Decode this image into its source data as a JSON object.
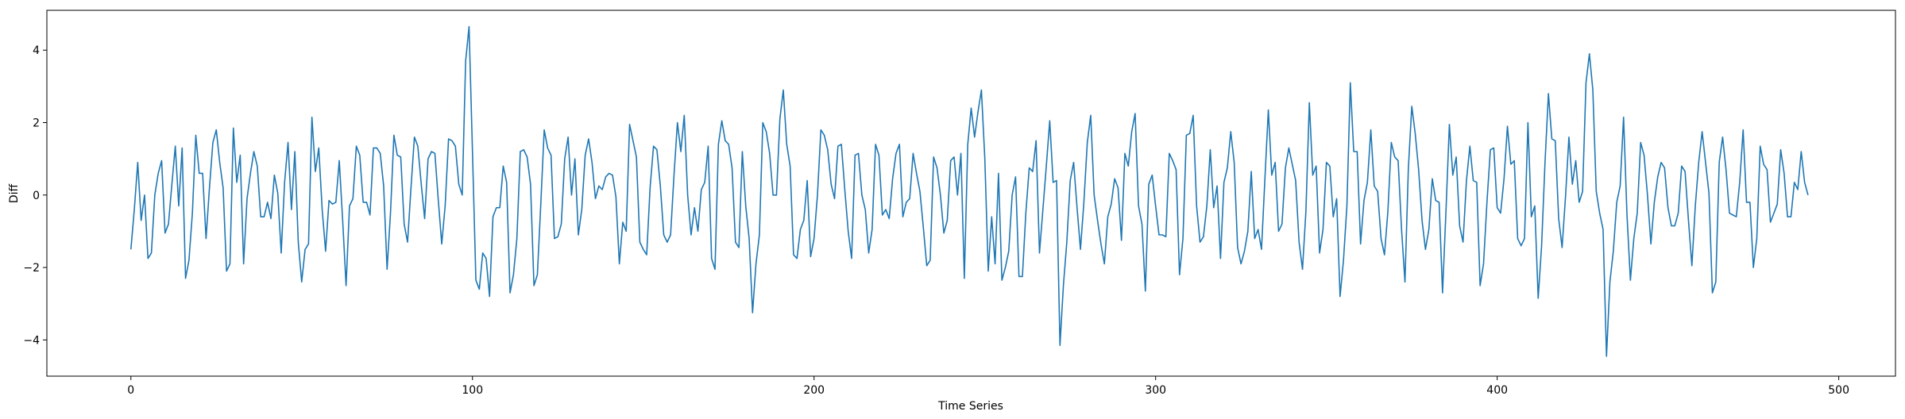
{
  "chart_data": {
    "type": "line",
    "title": "",
    "xlabel": "Time Series",
    "ylabel": "Diff",
    "xlim": [
      -24.6,
      516.6
    ],
    "ylim": [
      -5.0,
      5.1
    ],
    "xticks": [
      0,
      100,
      200,
      300,
      400,
      500
    ],
    "yticks": [
      -4,
      -2,
      0,
      2,
      4
    ],
    "xtick_labels": [
      "0",
      "100",
      "200",
      "300",
      "400",
      "500"
    ],
    "ytick_labels": [
      "−4",
      "−2",
      "0",
      "2",
      "4"
    ],
    "grid": false,
    "color": "#1f77b4",
    "series": [
      {
        "values": [
          -1.5,
          -0.4,
          0.9,
          -0.7,
          0.0,
          -1.75,
          -1.6,
          0.0,
          0.6,
          0.95,
          -1.05,
          -0.8,
          0.3,
          1.35,
          -0.3,
          1.3,
          -2.3,
          -1.8,
          -0.5,
          1.65,
          0.6,
          0.6,
          -1.2,
          0.2,
          1.45,
          1.8,
          0.9,
          0.2,
          -2.1,
          -1.9,
          1.85,
          0.35,
          1.1,
          -1.9,
          -0.1,
          0.6,
          1.2,
          0.8,
          -0.6,
          -0.6,
          -0.2,
          -0.65,
          0.55,
          0.05,
          -1.6,
          0.35,
          1.45,
          -0.4,
          1.2,
          -1.3,
          -2.4,
          -1.5,
          -1.35,
          2.15,
          0.65,
          1.3,
          -0.4,
          -1.55,
          -0.15,
          -0.25,
          -0.2,
          0.95,
          -0.7,
          -2.5,
          -0.3,
          -0.1,
          1.35,
          1.1,
          -0.2,
          -0.2,
          -0.55,
          1.3,
          1.3,
          1.15,
          0.25,
          -2.05,
          -0.5,
          1.65,
          1.1,
          1.05,
          -0.8,
          -1.3,
          0.2,
          1.6,
          1.35,
          0.3,
          -0.65,
          1.0,
          1.2,
          1.15,
          -0.15,
          -1.35,
          -0.3,
          1.55,
          1.5,
          1.35,
          0.3,
          0.0,
          3.7,
          4.65,
          1.2,
          -2.35,
          -2.6,
          -1.6,
          -1.75,
          -2.8,
          -0.6,
          -0.35,
          -0.35,
          0.8,
          0.35,
          -2.7,
          -2.2,
          -1.2,
          1.2,
          1.25,
          1.05,
          0.3,
          -2.5,
          -2.2,
          -0.25,
          1.8,
          1.3,
          1.1,
          -1.2,
          -1.15,
          -0.8,
          1.0,
          1.6,
          0.0,
          1.0,
          -1.1,
          -0.4,
          1.1,
          1.55,
          0.9,
          -0.1,
          0.25,
          0.15,
          0.5,
          0.6,
          0.55,
          -0.05,
          -1.9,
          -0.75,
          -1.0,
          1.95,
          1.5,
          1.05,
          -1.3,
          -1.5,
          -1.65,
          0.2,
          1.35,
          1.25,
          0.25,
          -1.1,
          -1.3,
          -1.1,
          0.55,
          2.0,
          1.2,
          2.2,
          0.0,
          -1.1,
          -0.35,
          -1.0,
          0.15,
          0.35,
          1.35,
          -1.75,
          -2.05,
          1.4,
          2.05,
          1.5,
          1.4,
          0.75,
          -1.3,
          -1.45,
          1.2,
          -0.3,
          -1.2,
          -3.25,
          -1.9,
          -1.1,
          2.0,
          1.75,
          1.15,
          0.0,
          0.0,
          2.1,
          2.9,
          1.4,
          0.8,
          -1.65,
          -1.75,
          -0.95,
          -0.7,
          0.4,
          -1.7,
          -1.2,
          0.0,
          1.8,
          1.65,
          1.25,
          0.3,
          -0.1,
          1.35,
          1.4,
          0.15,
          -1.0,
          -1.75,
          1.1,
          1.15,
          0.0,
          -0.4,
          -1.6,
          -0.95,
          1.4,
          1.1,
          -0.55,
          -0.4,
          -0.65,
          0.45,
          1.15,
          1.4,
          -0.6,
          -0.2,
          -0.1,
          1.15,
          0.6,
          0.1,
          -0.9,
          -1.95,
          -1.8,
          1.05,
          0.75,
          0.0,
          -1.05,
          -0.7,
          0.95,
          1.05,
          0.0,
          1.15,
          -2.3,
          1.4,
          2.4,
          1.6,
          2.3,
          2.9,
          1.0,
          -2.1,
          -0.6,
          -1.9,
          0.6,
          -2.35,
          -2.0,
          -1.55,
          0.0,
          0.5,
          -2.25,
          -2.25,
          -0.5,
          0.75,
          0.65,
          1.5,
          -1.6,
          -0.4,
          0.8,
          2.05,
          0.35,
          0.4,
          -4.15,
          -2.5,
          -1.3,
          0.4,
          0.9,
          -0.35,
          -1.5,
          -0.2,
          1.45,
          2.2,
          0.0,
          -0.7,
          -1.35,
          -1.9,
          -0.6,
          -0.25,
          0.45,
          0.2,
          -1.25,
          1.15,
          0.8,
          1.75,
          2.25,
          -0.3,
          -0.8,
          -2.65,
          0.3,
          0.55,
          -0.3,
          -1.1,
          -1.1,
          -1.15,
          1.15,
          0.95,
          0.7,
          -2.2,
          -1.2,
          1.65,
          1.7,
          2.2,
          -0.3,
          -1.3,
          -1.15,
          -0.3,
          1.25,
          -0.35,
          0.25,
          -1.75,
          0.35,
          0.75,
          1.75,
          0.9,
          -1.45,
          -1.9,
          -1.55,
          -1.0,
          0.65,
          -1.2,
          -0.95,
          -1.5,
          0.45,
          2.35,
          0.55,
          0.9,
          -1.0,
          -0.8,
          0.75,
          1.3,
          0.85,
          0.4,
          -1.3,
          -2.05,
          -0.45,
          2.55,
          0.55,
          0.8,
          -1.6,
          -0.95,
          0.9,
          0.8,
          -0.6,
          -0.1,
          -2.8,
          -1.8,
          -0.3,
          3.1,
          1.2,
          1.2,
          -1.35,
          -0.15,
          0.35,
          1.8,
          0.25,
          0.1,
          -1.2,
          -1.65,
          -0.45,
          1.45,
          1.05,
          0.95,
          -0.95,
          -2.4,
          0.75,
          2.45,
          1.7,
          0.7,
          -0.7,
          -1.5,
          -0.95,
          0.45,
          -0.15,
          -0.2,
          -2.7,
          -0.45,
          1.95,
          0.55,
          1.05,
          -0.85,
          -1.3,
          0.4,
          1.35,
          0.4,
          0.35,
          -2.5,
          -1.9,
          -0.2,
          1.25,
          1.3,
          -0.35,
          -0.5,
          0.45,
          1.9,
          0.85,
          0.95,
          -1.2,
          -1.4,
          -1.2,
          2.0,
          -0.6,
          -0.3,
          -2.85,
          -1.4,
          0.9,
          2.8,
          1.55,
          1.5,
          -0.65,
          -1.45,
          -0.05,
          1.6,
          0.3,
          0.95,
          -0.2,
          0.1,
          3.1,
          3.9,
          2.9,
          0.1,
          -0.5,
          -0.95,
          -4.45,
          -2.4,
          -1.55,
          -0.2,
          0.25,
          2.15,
          -0.55,
          -2.35,
          -1.2,
          -0.5,
          1.45,
          1.1,
          0.0,
          -1.35,
          -0.2,
          0.5,
          0.9,
          0.75,
          -0.35,
          -0.85,
          -0.85,
          -0.5,
          0.8,
          0.65,
          -0.7,
          -1.95,
          -0.3,
          0.9,
          1.75,
          0.9,
          0.05,
          -2.7,
          -2.4,
          0.9,
          1.6,
          0.7,
          -0.5,
          -0.55,
          -0.6,
          0.35,
          1.8,
          -0.2,
          -0.2,
          -2.0,
          -1.2,
          1.35,
          0.85,
          0.7,
          -0.75,
          -0.5,
          -0.25,
          1.25,
          0.6,
          -0.6,
          -0.6,
          0.35,
          0.15,
          1.2,
          0.35,
          0.0
        ]
      }
    ]
  }
}
